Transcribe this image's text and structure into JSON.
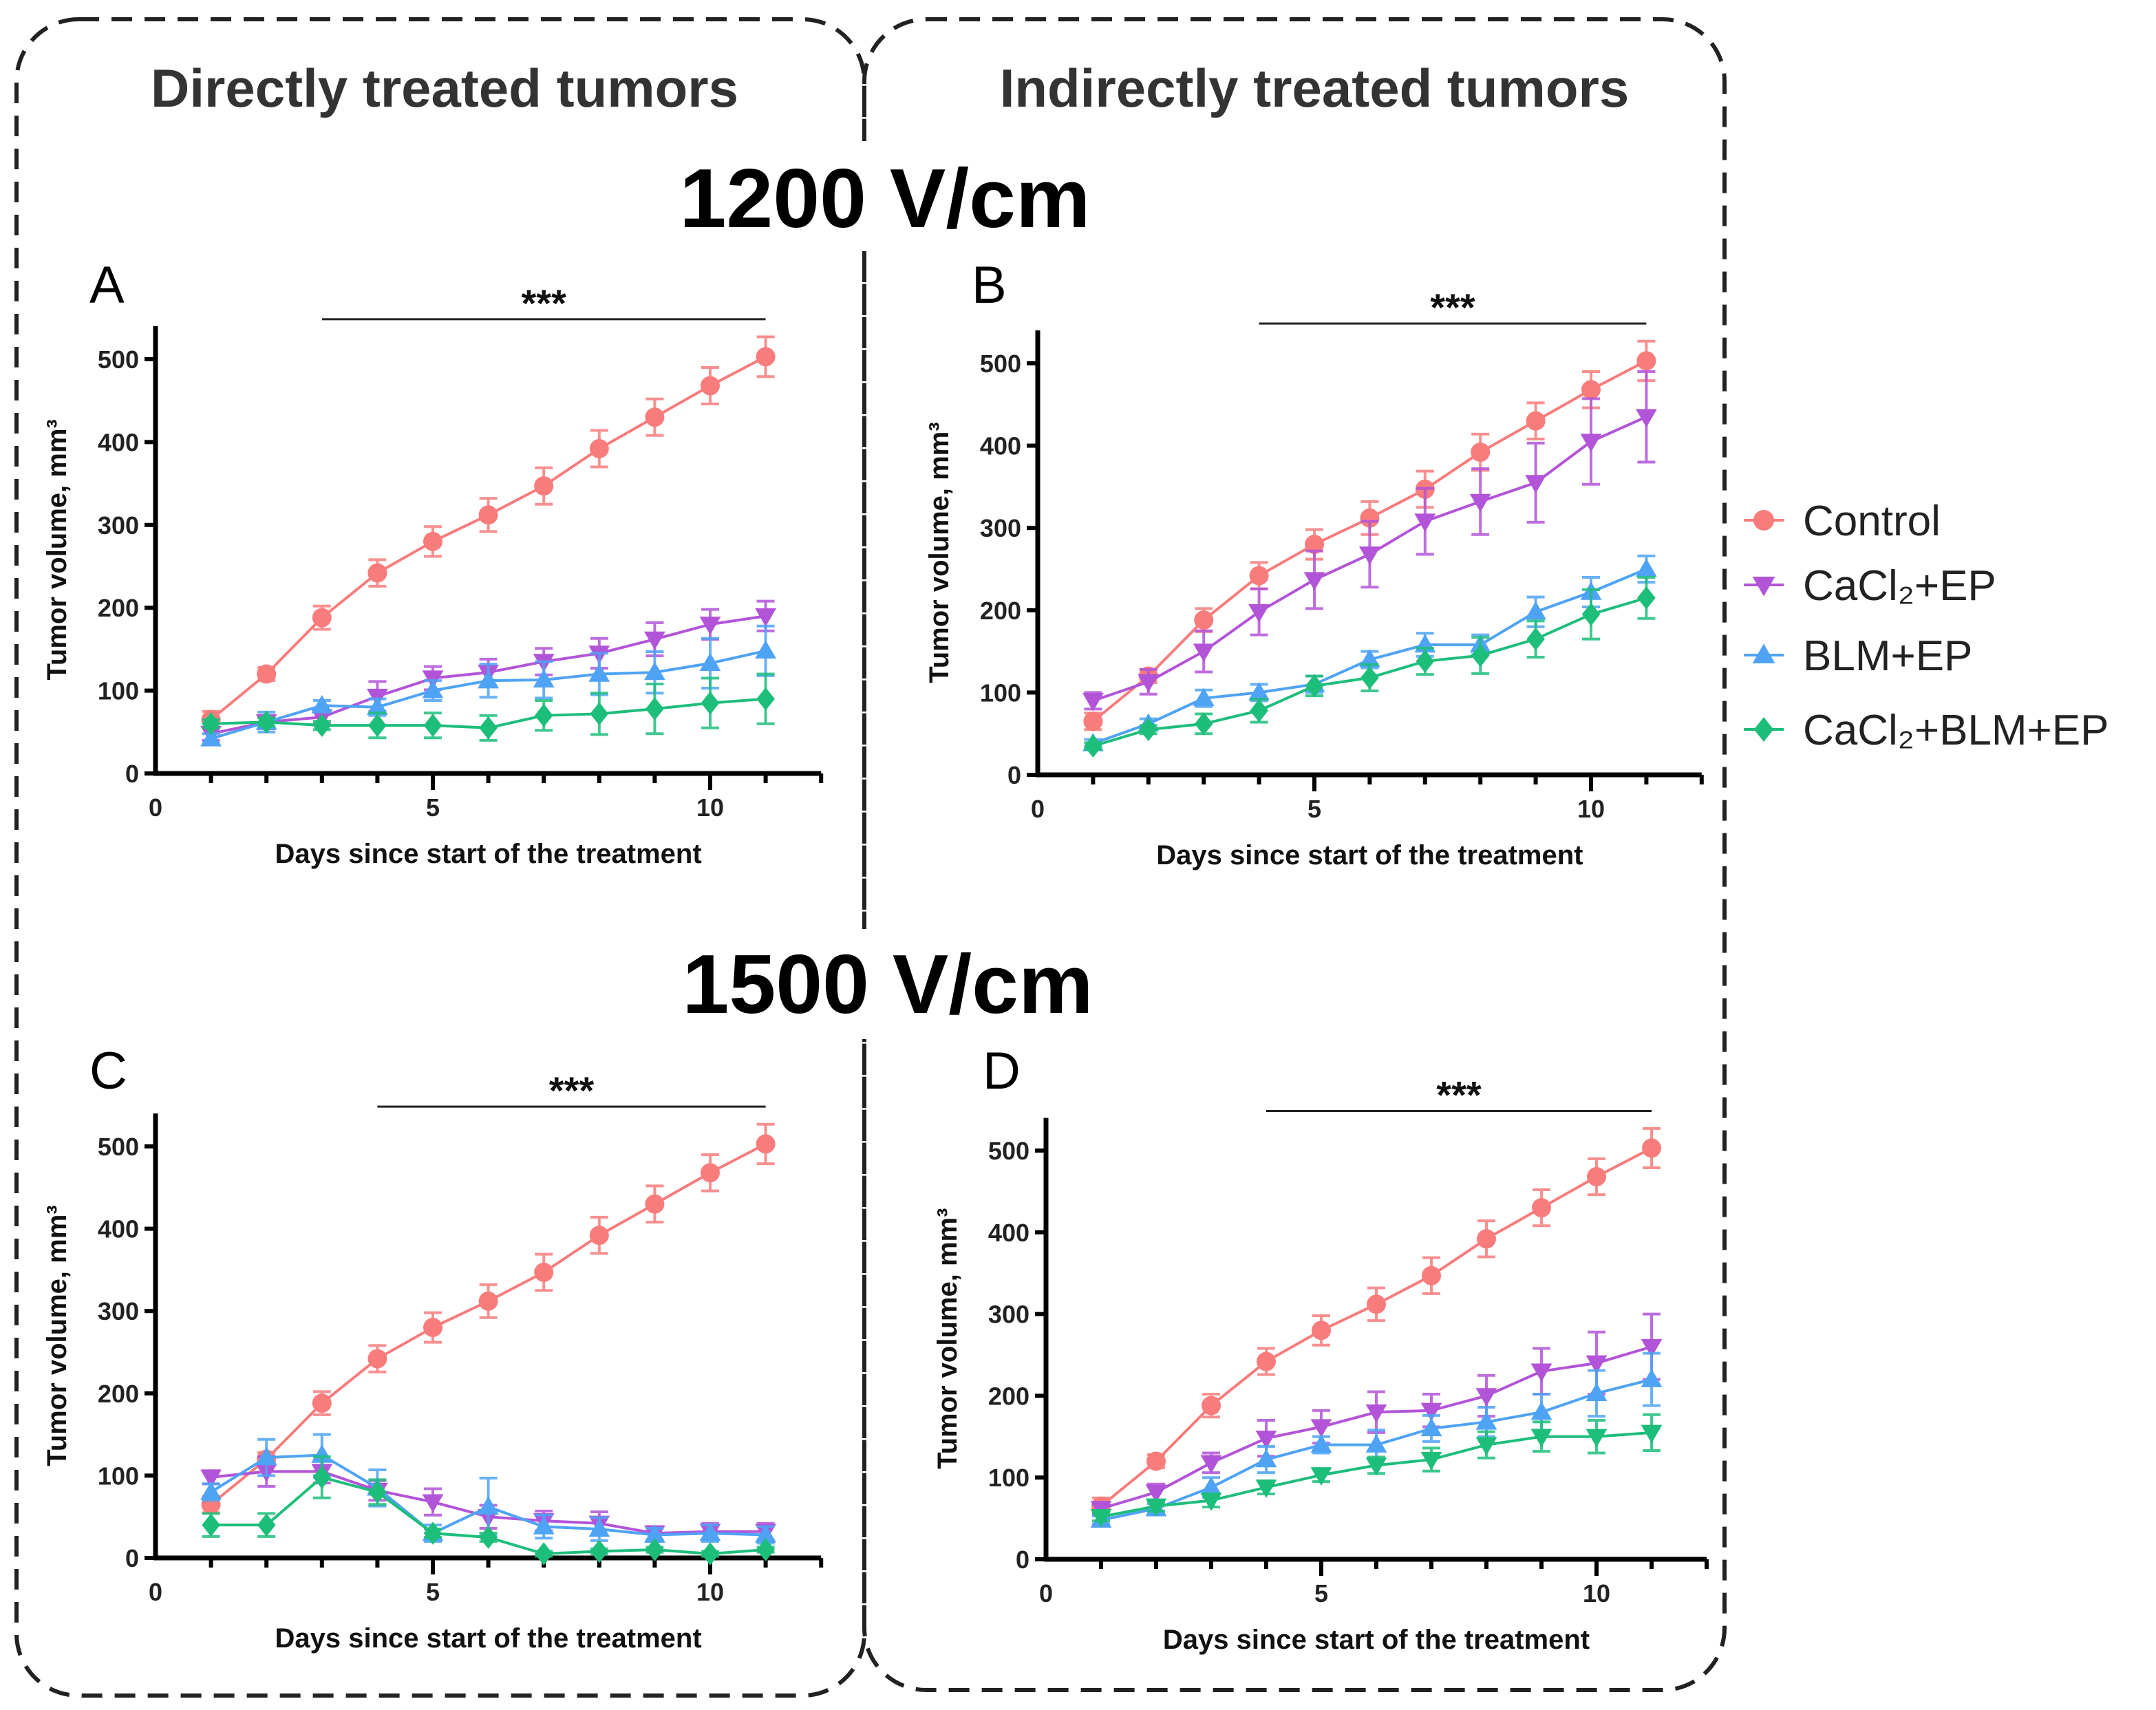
{
  "headers": {
    "left": "Directly treated tumors",
    "right": "Indirectly treated tumors"
  },
  "sections": {
    "top": "1200 V/cm",
    "bottom": "1500 V/cm"
  },
  "legend": [
    {
      "label": "Control",
      "color": "#F87C7C",
      "marker": "circle"
    },
    {
      "label": "CaCl₂+EP",
      "color": "#B254D8",
      "marker": "triangle-down"
    },
    {
      "label": "BLM+EP",
      "color": "#4FA3F5",
      "marker": "triangle-up"
    },
    {
      "label": "CaCl₂+BLM+EP",
      "color": "#1DBE7A",
      "marker": "diamond"
    }
  ],
  "chart_data": [
    {
      "panel": "A",
      "type": "line",
      "xlabel": "Days since start of the treatment",
      "ylabel": "Tumor volume, mm³",
      "xlim": [
        0,
        12
      ],
      "ylim": [
        0,
        540
      ],
      "xticks": [
        0,
        5,
        10
      ],
      "yticks": [
        0,
        100,
        200,
        300,
        400,
        500
      ],
      "significance": {
        "label": "***",
        "from": 3,
        "to": 11
      },
      "x": [
        1,
        2,
        3,
        4,
        5,
        6,
        7,
        8,
        9,
        10,
        11
      ],
      "series": [
        {
          "name": "Control",
          "values": [
            65,
            120,
            188,
            242,
            280,
            312,
            347,
            392,
            430,
            468,
            503
          ],
          "err": [
            10,
            8,
            14,
            16,
            18,
            20,
            22,
            22,
            22,
            22,
            24
          ]
        },
        {
          "name": "CaCl₂+EP",
          "values": [
            48,
            62,
            68,
            93,
            115,
            122,
            135,
            145,
            162,
            180,
            190
          ],
          "err": [
            8,
            8,
            8,
            18,
            14,
            16,
            16,
            18,
            20,
            18,
            18
          ]
        },
        {
          "name": "BLM+EP",
          "values": [
            42,
            62,
            82,
            80,
            100,
            112,
            113,
            120,
            122,
            133,
            148
          ],
          "err": [
            6,
            12,
            6,
            10,
            12,
            20,
            22,
            25,
            25,
            30,
            30
          ]
        },
        {
          "name": "CaCl₂+BLM+EP",
          "values": [
            60,
            62,
            58,
            58,
            58,
            55,
            70,
            72,
            78,
            85,
            90
          ],
          "err": [
            5,
            5,
            5,
            15,
            15,
            15,
            18,
            25,
            30,
            30,
            30
          ]
        }
      ]
    },
    {
      "panel": "B",
      "type": "line",
      "xlabel": "Days since start of the treatment",
      "ylabel": "Tumor volume, mm³",
      "xlim": [
        0,
        12
      ],
      "ylim": [
        0,
        540
      ],
      "xticks": [
        0,
        5,
        10
      ],
      "yticks": [
        0,
        100,
        200,
        300,
        400,
        500
      ],
      "significance": {
        "label": "***",
        "from": 4,
        "to": 11
      },
      "x": [
        1,
        2,
        3,
        4,
        5,
        6,
        7,
        8,
        9,
        10,
        11
      ],
      "series": [
        {
          "name": "Control",
          "values": [
            65,
            120,
            188,
            242,
            280,
            312,
            347,
            392,
            430,
            468,
            503
          ],
          "err": [
            10,
            8,
            14,
            16,
            18,
            20,
            22,
            22,
            22,
            22,
            24
          ]
        },
        {
          "name": "CaCl₂+EP",
          "values": [
            90,
            113,
            150,
            198,
            237,
            268,
            308,
            332,
            355,
            405,
            435
          ],
          "err": [
            10,
            15,
            25,
            28,
            35,
            40,
            40,
            40,
            48,
            52,
            55
          ]
        },
        {
          "name": "BLM+EP",
          "values": [
            38,
            62,
            93,
            100,
            110,
            140,
            158,
            158,
            198,
            222,
            250
          ],
          "err": [
            5,
            6,
            10,
            10,
            10,
            10,
            14,
            12,
            18,
            18,
            16
          ]
        },
        {
          "name": "CaCl₂+BLM+EP",
          "values": [
            35,
            55,
            62,
            78,
            108,
            118,
            138,
            145,
            165,
            195,
            215
          ],
          "err": [
            4,
            5,
            12,
            14,
            12,
            16,
            16,
            22,
            22,
            30,
            25
          ]
        }
      ]
    },
    {
      "panel": "C",
      "type": "line",
      "xlabel": "Days since start of the treatment",
      "ylabel": "Tumor volume, mm³",
      "xlim": [
        0,
        12
      ],
      "ylim": [
        0,
        540
      ],
      "xticks": [
        0,
        5,
        10
      ],
      "yticks": [
        0,
        100,
        200,
        300,
        400,
        500
      ],
      "significance": {
        "label": "***",
        "from": 4,
        "to": 11
      },
      "x": [
        1,
        2,
        3,
        4,
        5,
        6,
        7,
        8,
        9,
        10,
        11
      ],
      "series": [
        {
          "name": "Control",
          "values": [
            65,
            120,
            188,
            242,
            280,
            312,
            347,
            392,
            430,
            468,
            503
          ],
          "err": [
            10,
            8,
            14,
            16,
            18,
            20,
            22,
            22,
            22,
            22,
            24
          ]
        },
        {
          "name": "CaCl₂+EP",
          "values": [
            98,
            105,
            105,
            82,
            68,
            50,
            45,
            42,
            30,
            32,
            32
          ],
          "err": [
            8,
            18,
            14,
            12,
            16,
            14,
            12,
            14,
            8,
            10,
            10
          ]
        },
        {
          "name": "BLM+EP",
          "values": [
            80,
            122,
            125,
            85,
            30,
            62,
            38,
            35,
            28,
            30,
            28
          ],
          "err": [
            10,
            22,
            25,
            22,
            10,
            35,
            14,
            14,
            8,
            10,
            10
          ]
        },
        {
          "name": "CaCl₂+BLM+EP",
          "values": [
            40,
            40,
            98,
            80,
            30,
            25,
            5,
            8,
            10,
            5,
            10
          ],
          "err": [
            14,
            14,
            25,
            15,
            5,
            5,
            3,
            3,
            3,
            3,
            3
          ]
        }
      ]
    },
    {
      "panel": "D",
      "type": "line",
      "xlabel": "Days since start of the treatment",
      "ylabel": "Tumor volume, mm³",
      "xlim": [
        0,
        12
      ],
      "ylim": [
        0,
        540
      ],
      "xticks": [
        0,
        5,
        10
      ],
      "yticks": [
        0,
        100,
        200,
        300,
        400,
        500
      ],
      "significance": {
        "label": "***",
        "from": 4,
        "to": 11
      },
      "x": [
        1,
        2,
        3,
        4,
        5,
        6,
        7,
        8,
        9,
        10,
        11
      ],
      "series": [
        {
          "name": "Control",
          "values": [
            65,
            120,
            188,
            242,
            280,
            312,
            347,
            392,
            430,
            468,
            503
          ],
          "err": [
            10,
            8,
            14,
            16,
            18,
            20,
            22,
            22,
            22,
            22,
            24
          ]
        },
        {
          "name": "CaCl₂+EP",
          "values": [
            62,
            82,
            118,
            148,
            162,
            180,
            182,
            200,
            230,
            240,
            260
          ],
          "err": [
            6,
            10,
            12,
            22,
            20,
            25,
            20,
            25,
            28,
            38,
            40
          ]
        },
        {
          "name": "BLM+EP",
          "values": [
            48,
            62,
            88,
            122,
            140,
            140,
            160,
            168,
            180,
            203,
            220
          ],
          "err": [
            5,
            6,
            12,
            16,
            10,
            18,
            16,
            18,
            22,
            28,
            32
          ]
        },
        {
          "name": "CaCl₂+BLM+EP",
          "values": [
            52,
            65,
            72,
            88,
            103,
            115,
            122,
            140,
            150,
            150,
            155
          ],
          "err": [
            5,
            6,
            8,
            8,
            8,
            10,
            14,
            16,
            18,
            20,
            22
          ]
        }
      ]
    }
  ]
}
